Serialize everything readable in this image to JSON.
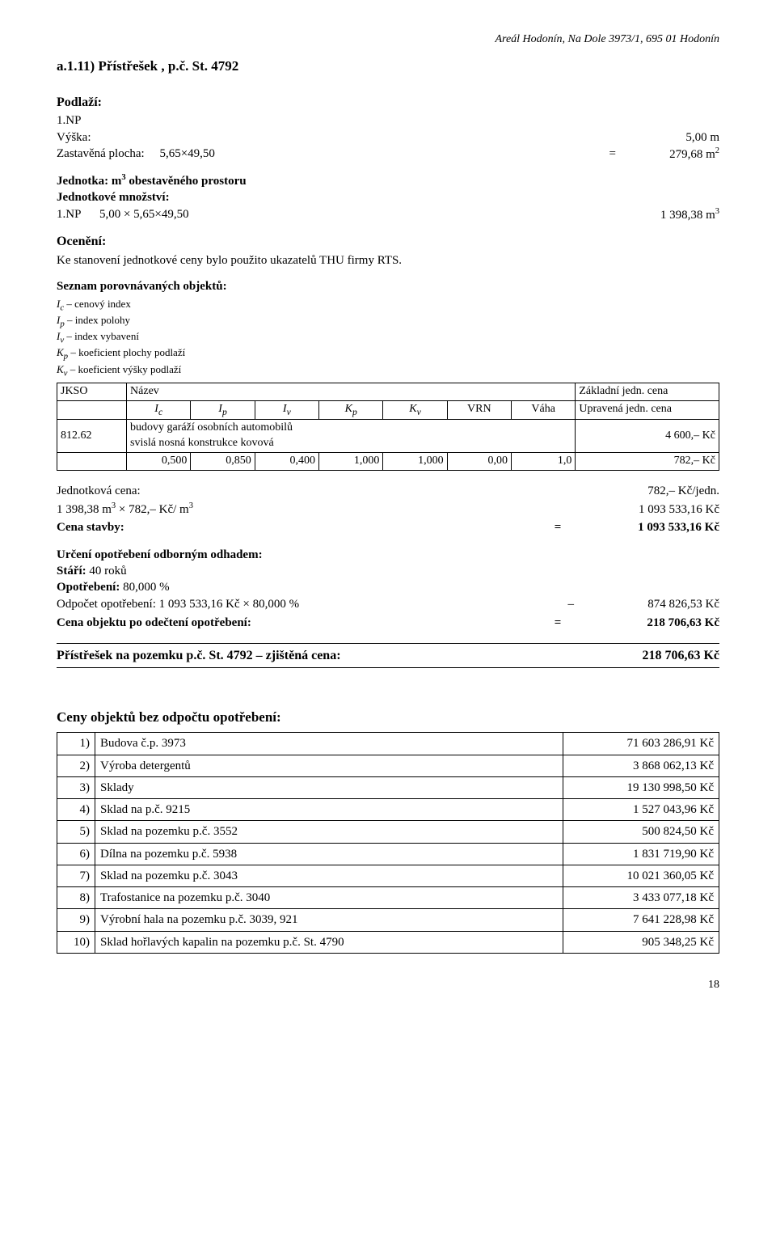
{
  "header": {
    "location": "Areál Hodonín, Na Dole 3973/1, 695 01 Hodonín"
  },
  "section": {
    "title": "a.1.11)  Přístřešek , p.č. St. 4792"
  },
  "podlazi": {
    "label": "Podlaží:",
    "np": "1.NP",
    "vyska_label": "Výška:",
    "vyska": "5,00 m",
    "zastavena_label": "Zastavěná plocha:",
    "zastavena_expr": "5,65×49,50",
    "zastavena_val": "279,68 m",
    "zastavena_exp": "2"
  },
  "jednotka": {
    "label_main": "Jednotka: m",
    "label_exp": "3",
    "label_rest": " obestavěného prostoru",
    "mnozstvi_label": "Jednotkové množství:",
    "np": "1.NP",
    "expr": "5,00 × 5,65×49,50",
    "val": "1 398,38 m",
    "val_exp": "3"
  },
  "oceneni": {
    "label": "Ocenění:",
    "text": "Ke stanovení jednotkové ceny bylo použito ukazatelů THU firmy RTS."
  },
  "seznam": {
    "title": "Seznam porovnávaných objektů:",
    "legend": [
      {
        "sym": "I",
        "sub": "c",
        "txt": " – cenový index"
      },
      {
        "sym": "I",
        "sub": "p",
        "txt": " – index polohy"
      },
      {
        "sym": "I",
        "sub": "v",
        "txt": " – index vybavení"
      },
      {
        "sym": "K",
        "sub": "p",
        "txt": " – koeficient plochy podlaží"
      },
      {
        "sym": "K",
        "sub": "v",
        "txt": " – koeficient výšky podlaží"
      }
    ],
    "cols": {
      "jkso": "JKSO",
      "nazev": "Název",
      "zakladni": "Základní jedn. cena",
      "ic": "I",
      "ic_sub": "c",
      "ip": "I",
      "ip_sub": "p",
      "iv": "I",
      "iv_sub": "v",
      "kp": "K",
      "kp_sub": "p",
      "kv": "K",
      "kv_sub": "v",
      "vrn": "VRN",
      "vaha": "Váha",
      "upr": "Upravená jedn. cena"
    },
    "row1": {
      "jkso": "812.62",
      "name": "budovy garáží osobních automobilů\nsvislá nosná konstrukce kovová",
      "base": "4 600,–  Kč"
    },
    "row2": {
      "ic": "0,500",
      "ip": "0,850",
      "iv": "0,400",
      "kp": "1,000",
      "kv": "1,000",
      "vrn": "0,00",
      "vaha": "1,0",
      "upr": "782,–  Kč"
    }
  },
  "calc": {
    "jc_label": "Jednotková cena:",
    "jc_val": "782,–  Kč/jedn.",
    "formula_lhs": "1 398,38 m3 × 782,– Kč/ m3",
    "formula_lhs_pre": "1 398,38 m",
    "formula_lhs_mid": " × 782,– Kč/ m",
    "formula_rhs": "1 093 533,16 Kč",
    "cs_label": "Cena stavby:",
    "cs_val": "1 093 533,16 Kč",
    "urceni_label": "Určení opotřebení odborným odhadem:",
    "stari_label": "Stáří:",
    "stari_val": " 40 roků",
    "opotrebeni_label": "Opotřebení:",
    "opotrebeni_val": " 80,000 %",
    "odpocet_label": "Odpočet opotřebení: 1 093 533,16 Kč × 80,000 %",
    "odpocet_val": "874 826,53 Kč",
    "cena_po_label": "Cena objektu po odečtení opotřebení:",
    "cena_po_val": "218 706,63 Kč"
  },
  "result": {
    "label": "Přístřešek na pozemku p.č. St. 4792 – zjištěná cena:",
    "value": "218 706,63 Kč"
  },
  "summary": {
    "title": "Ceny objektů bez odpočtu opotřebení:",
    "rows": [
      {
        "n": "1)",
        "name": "Budova č.p. 3973",
        "amt": "71 603 286,91 Kč"
      },
      {
        "n": "2)",
        "name": "Výroba detergentů",
        "amt": "3 868 062,13 Kč"
      },
      {
        "n": "3)",
        "name": "Sklady",
        "amt": "19 130 998,50 Kč"
      },
      {
        "n": "4)",
        "name": "Sklad na p.č. 9215",
        "amt": "1 527 043,96 Kč"
      },
      {
        "n": "5)",
        "name": "Sklad na pozemku p.č. 3552",
        "amt": "500 824,50 Kč"
      },
      {
        "n": "6)",
        "name": "Dílna na pozemku p.č. 5938",
        "amt": "1 831 719,90 Kč"
      },
      {
        "n": "7)",
        "name": "Sklad na pozemku p.č. 3043",
        "amt": "10 021 360,05 Kč"
      },
      {
        "n": "8)",
        "name": "Trafostanice na pozemku p.č. 3040",
        "amt": "3 433 077,18 Kč"
      },
      {
        "n": "9)",
        "name": "Výrobní hala na pozemku p.č. 3039, 921",
        "amt": "7 641 228,98 Kč"
      },
      {
        "n": "10)",
        "name": "Sklad hořlavých kapalin na pozemku p.č. St. 4790",
        "amt": "905 348,25 Kč"
      }
    ]
  },
  "page": {
    "num": "18"
  }
}
